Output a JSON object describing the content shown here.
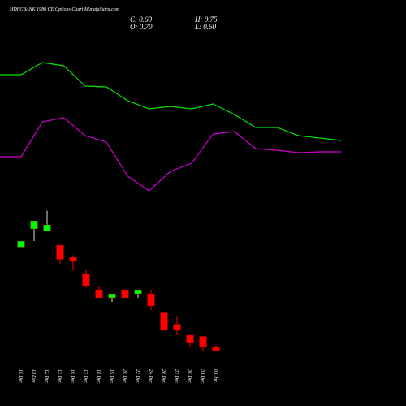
{
  "chart_data": {
    "type": "candlestick",
    "title": "HDFCBANK 1980 CE Options Chart MunafaSutra.com",
    "ohlc_labels": [
      "C: 0.60",
      "H: 0.75",
      "O: 0.70",
      "L: 0.60"
    ],
    "categories": [
      "10 Dec",
      "11 Dec",
      "12 Dec",
      "13 Dec",
      "16 Dec",
      "17 Dec",
      "18 Dec",
      "19 Dec",
      "20 Dec",
      "23 Dec",
      "24 Dec",
      "26 Dec",
      "27 Dec",
      "30 Dec",
      "31 Dec",
      "01 Jan"
    ],
    "open": [
      3.15,
      3.6,
      3.55,
      3.2,
      2.9,
      2.5,
      2.1,
      1.9,
      2.1,
      2.0,
      2.0,
      1.55,
      1.25,
      1.0,
      0.95,
      0.7
    ],
    "high": [
      3.3,
      3.8,
      4.05,
      3.2,
      2.95,
      2.6,
      2.2,
      2.0,
      2.1,
      2.1,
      2.1,
      1.55,
      1.45,
      1.0,
      0.95,
      0.75
    ],
    "low": [
      3.15,
      3.3,
      3.55,
      2.75,
      2.6,
      2.15,
      1.9,
      1.8,
      1.9,
      1.9,
      1.6,
      1.1,
      1.0,
      0.7,
      0.6,
      0.6
    ],
    "close": [
      3.3,
      3.8,
      3.7,
      2.85,
      2.8,
      2.2,
      1.9,
      2.0,
      1.9,
      2.1,
      1.7,
      1.1,
      1.1,
      0.8,
      0.7,
      0.6
    ],
    "up_color": "#00ff00",
    "down_color": "#ff0000",
    "series": [
      {
        "color": "#00e600",
        "values": [
          7.4,
          7.7,
          7.62,
          7.12,
          7.1,
          6.76,
          6.56,
          6.62,
          6.56,
          6.68,
          6.42,
          6.1,
          6.1,
          5.9,
          5.84,
          5.78
        ]
      },
      {
        "color": "#cc00cc",
        "values": [
          5.38,
          6.24,
          6.34,
          5.9,
          5.74,
          4.9,
          4.54,
          5.02,
          5.22,
          5.94,
          6.0,
          5.58,
          5.54,
          5.48,
          5.5,
          5.5
        ]
      }
    ],
    "ylim": [
      0,
      10
    ]
  }
}
